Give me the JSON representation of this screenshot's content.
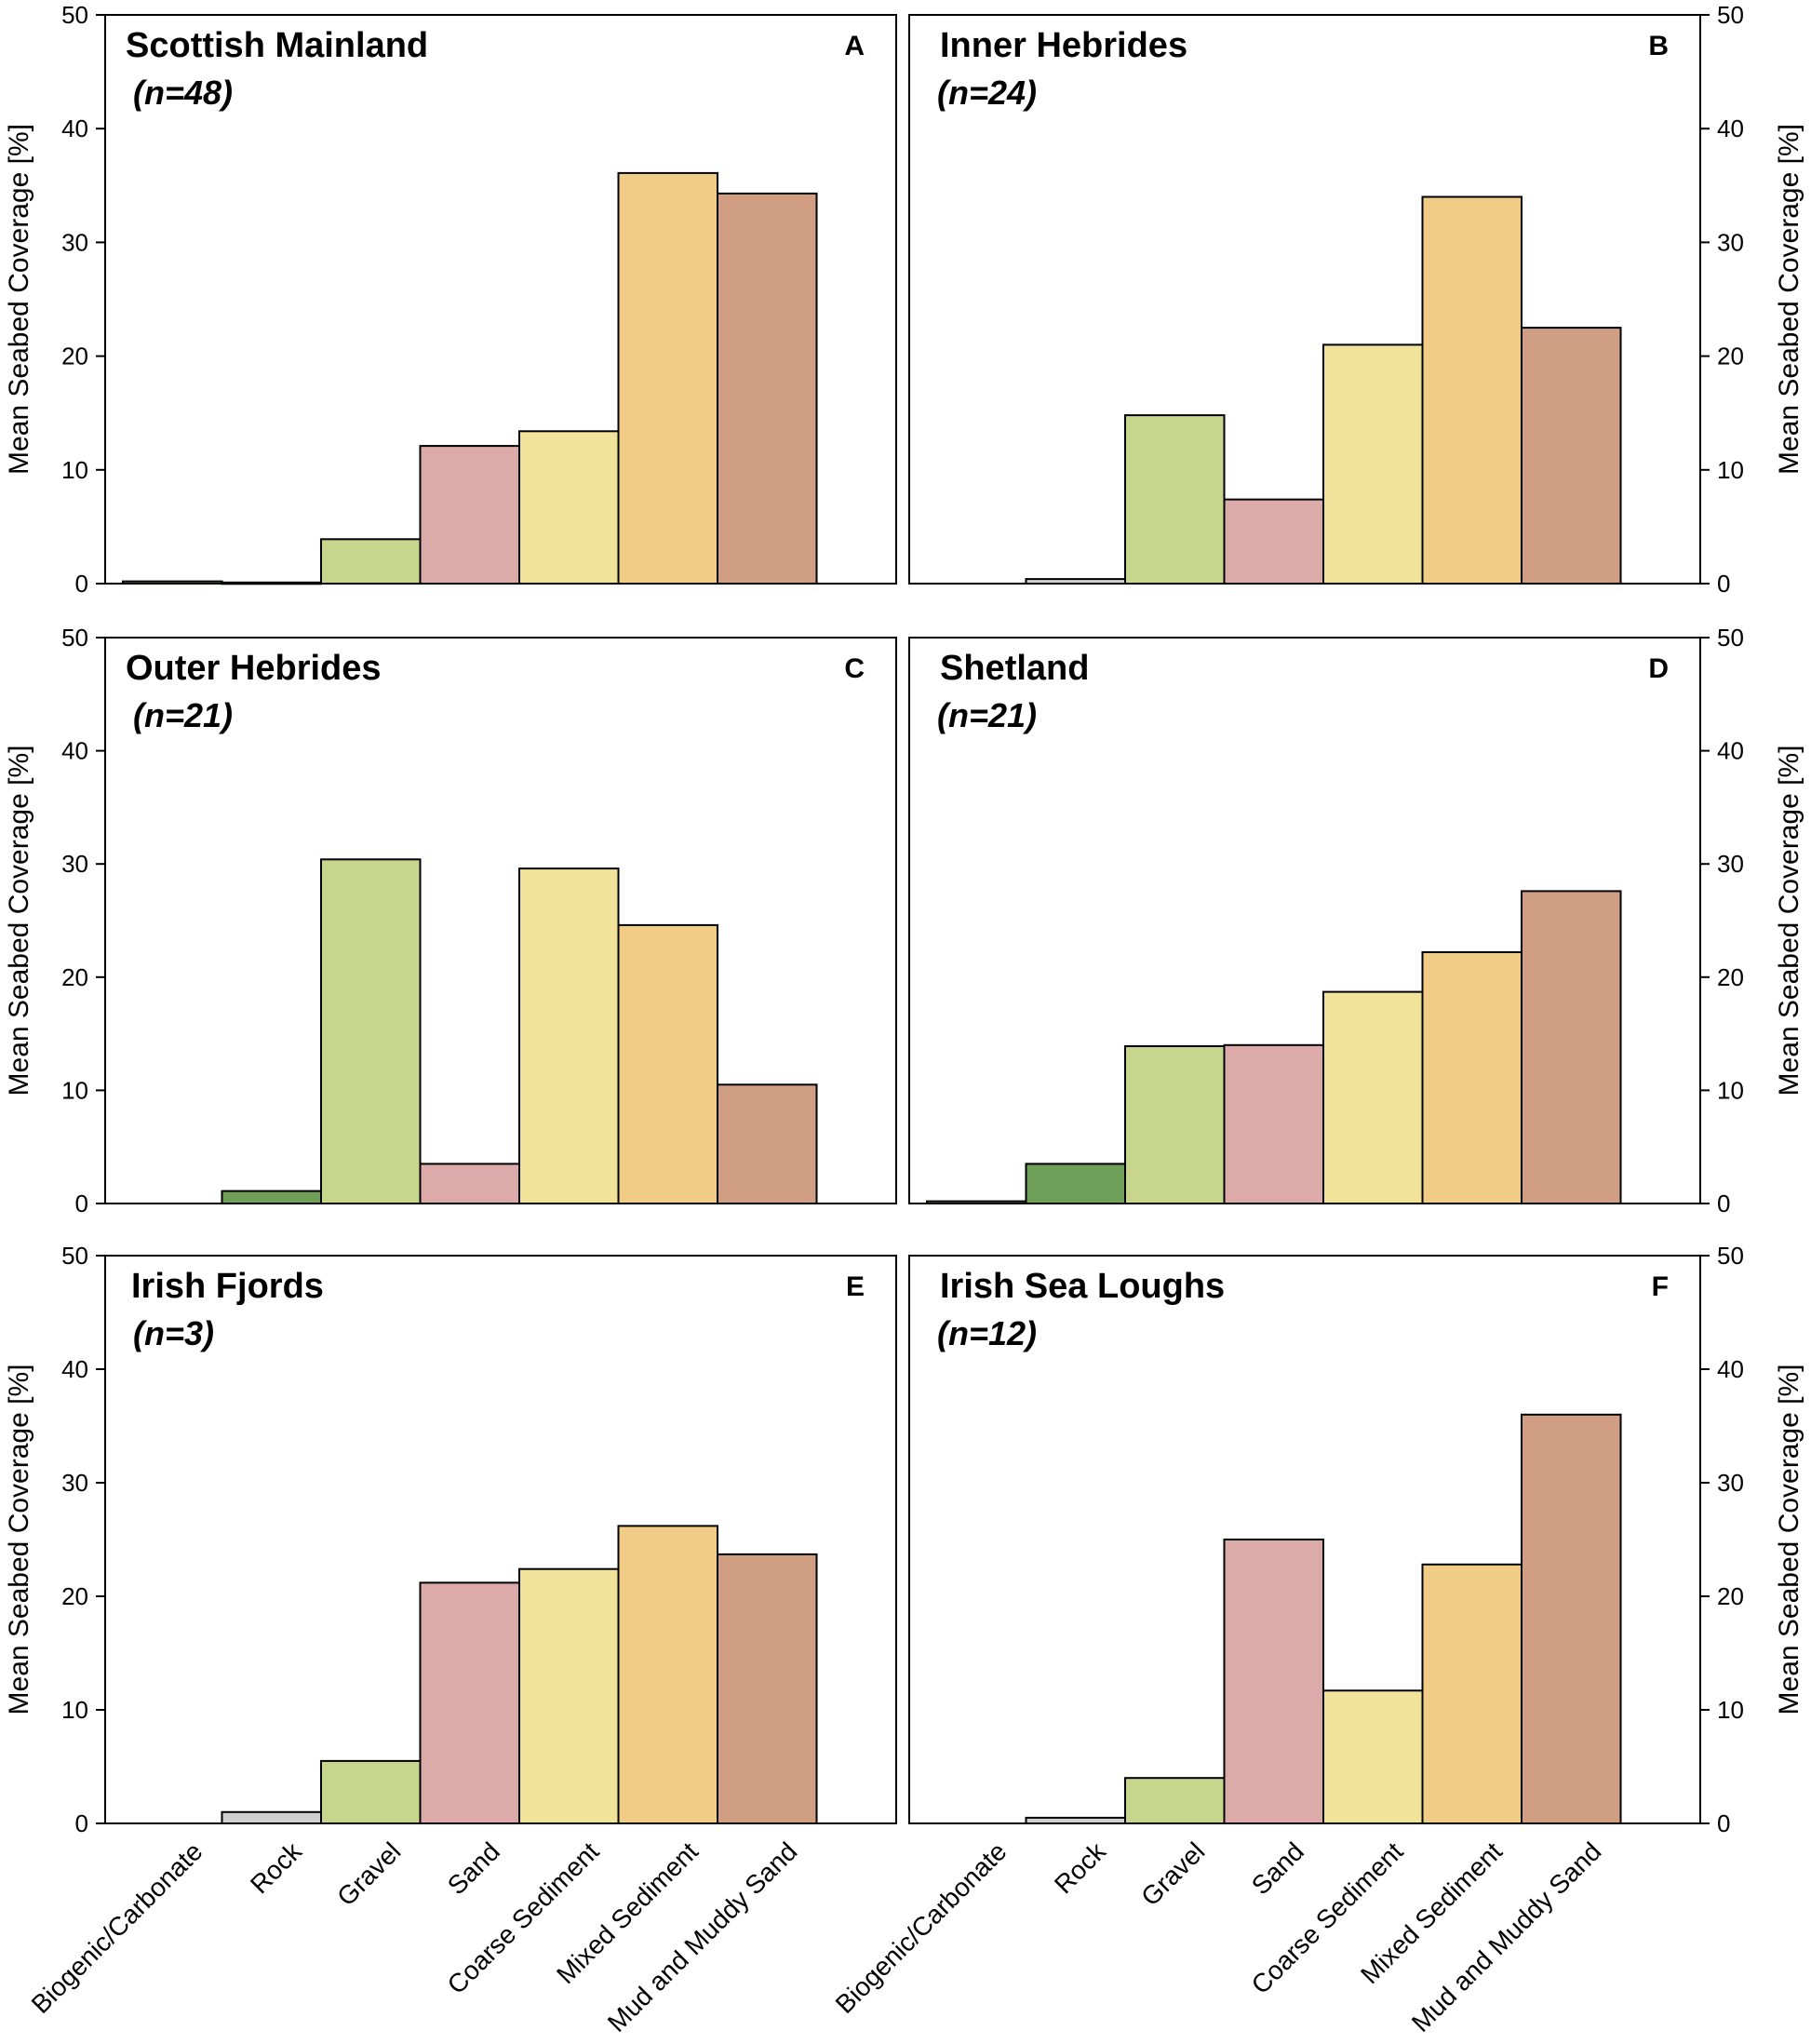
{
  "chart_data": [
    {
      "type": "bar",
      "panel": "A",
      "title": "Scottish Mainland",
      "n_label": "(n=48)",
      "ylabel": "Mean Seabed Coverage [%]",
      "ylim": [
        0,
        50
      ],
      "yticks": [
        0,
        10,
        20,
        30,
        40,
        50
      ],
      "categories": [
        "Biogenic/Carbonate",
        "Rock",
        "Gravel",
        "Sand",
        "Coarse Sediment",
        "Mixed Sediment",
        "Mud and Muddy Sand"
      ],
      "values": [
        0.2,
        0.1,
        3.9,
        12.1,
        13.4,
        36.1,
        34.3
      ]
    },
    {
      "type": "bar",
      "panel": "B",
      "title": "Inner Hebrides",
      "n_label": "(n=24)",
      "ylabel": "Mean Seabed Coverage [%]",
      "ylim": [
        0,
        50
      ],
      "yticks": [
        0,
        10,
        20,
        30,
        40,
        50
      ],
      "categories": [
        "Biogenic/Carbonate",
        "Rock",
        "Gravel",
        "Sand",
        "Coarse Sediment",
        "Mixed Sediment",
        "Mud and Muddy Sand"
      ],
      "values": [
        0,
        0.4,
        14.8,
        7.4,
        21.0,
        34.0,
        22.5
      ]
    },
    {
      "type": "bar",
      "panel": "C",
      "title": "Outer Hebrides",
      "n_label": "(n=21)",
      "ylabel": "Mean Seabed Coverage [%]",
      "ylim": [
        0,
        50
      ],
      "yticks": [
        0,
        10,
        20,
        30,
        40,
        50
      ],
      "categories": [
        "Biogenic/Carbonate",
        "Rock",
        "Gravel",
        "Sand",
        "Coarse Sediment",
        "Mixed Sediment",
        "Mud and Muddy Sand"
      ],
      "values": [
        0,
        1.1,
        30.4,
        3.5,
        29.6,
        24.6,
        10.5
      ]
    },
    {
      "type": "bar",
      "panel": "D",
      "title": "Shetland",
      "n_label": "(n=21)",
      "ylabel": "Mean Seabed Coverage [%]",
      "ylim": [
        0,
        50
      ],
      "yticks": [
        0,
        10,
        20,
        30,
        40,
        50
      ],
      "categories": [
        "Biogenic/Carbonate",
        "Rock",
        "Gravel",
        "Sand",
        "Coarse Sediment",
        "Mixed Sediment",
        "Mud and Muddy Sand"
      ],
      "values": [
        0.2,
        3.5,
        13.9,
        14.0,
        18.7,
        22.2,
        27.6
      ]
    },
    {
      "type": "bar",
      "panel": "E",
      "title": "Irish Fjords",
      "n_label": "(n=3)",
      "ylabel": "Mean Seabed Coverage [%]",
      "ylim": [
        0,
        50
      ],
      "yticks": [
        0,
        10,
        20,
        30,
        40,
        50
      ],
      "categories": [
        "Biogenic/Carbonate",
        "Rock",
        "Gravel",
        "Sand",
        "Coarse Sediment",
        "Mixed Sediment",
        "Mud and Muddy Sand"
      ],
      "values": [
        0,
        1.0,
        5.5,
        21.2,
        22.4,
        26.2,
        23.7
      ]
    },
    {
      "type": "bar",
      "panel": "F",
      "title": "Irish Sea Loughs",
      "n_label": "(n=12)",
      "ylabel": "Mean Seabed Coverage [%]",
      "ylim": [
        0,
        50
      ],
      "yticks": [
        0,
        10,
        20,
        30,
        40,
        50
      ],
      "categories": [
        "Biogenic/Carbonate",
        "Rock",
        "Gravel",
        "Sand",
        "Coarse Sediment",
        "Mixed Sediment",
        "Mud and Muddy Sand"
      ],
      "values": [
        0,
        0.5,
        4.0,
        25.0,
        11.7,
        22.8,
        36.0
      ]
    }
  ],
  "colors": {
    "Biogenic/Carbonate": "#6e9e58",
    "Rock": "#cfcfcf",
    "Gravel": "#c8d58c",
    "Sand": "#ddaaaa",
    "Coarse Sediment": "#f2e39a",
    "Mixed Sediment": "#f0cc86",
    "Mud and Muddy Sand": "#d09e82"
  },
  "rock_color_by_panel": {
    "A": "#6e9e58",
    "B": "#cfcfcf",
    "C": "#6e9e58",
    "D": "#6e9e58",
    "E": "#cfcfcf",
    "F": "#cfcfcf"
  }
}
